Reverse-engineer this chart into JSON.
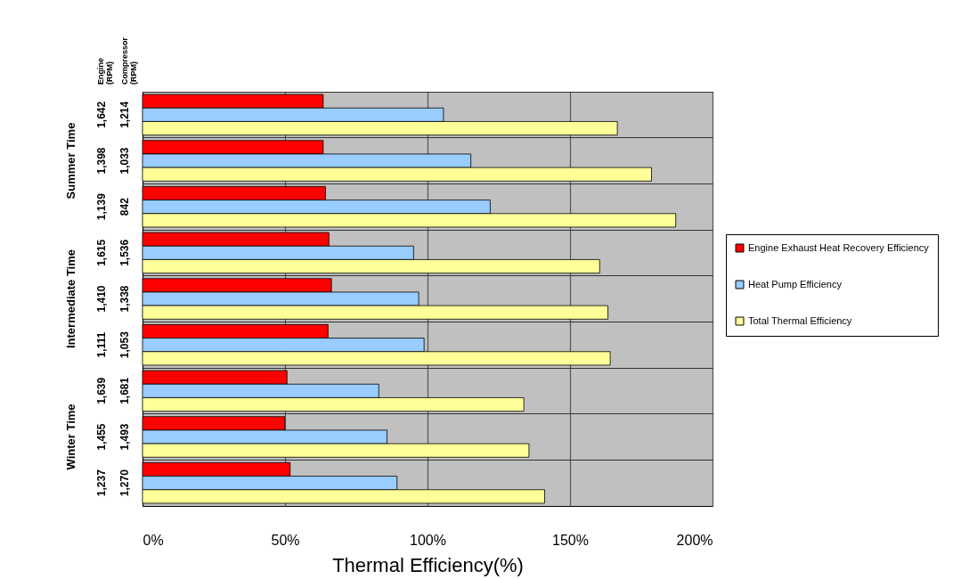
{
  "chart_data": {
    "type": "bar",
    "orientation": "horizontal",
    "xlabel": "Thermal Efficiency(%)",
    "ylabel": "Engine (RPM)",
    "y2label": "Compressor (RPM)",
    "categories": [
      "1,642",
      "1,398",
      "1,139",
      "1,615",
      "1,410",
      "1,111",
      "1,639",
      "1,455",
      "1,237"
    ],
    "series": [
      {
        "name": "Engine Exhaust Heat Recovery Efficiency",
        "color": "#ff0000",
        "values": [
          63.4,
          63.4,
          64.2,
          65.4,
          66.3,
          65.1,
          50.7,
          49.9,
          51.8
        ]
      },
      {
        "name": "Heat Pump Efficiency",
        "color": "#99ccff",
        "values": [
          105.6,
          115.2,
          122.0,
          95.1,
          96.9,
          98.8,
          82.9,
          85.8,
          89.3
        ]
      },
      {
        "name": "Total Thermal Efficiency",
        "color": "#ffff99",
        "values": [
          166.6,
          178.6,
          187.1,
          160.4,
          163.3,
          164.1,
          133.8,
          135.6,
          141.1
        ]
      }
    ],
    "xlim": [
      0,
      200
    ],
    "xticks": [
      {
        "value": 0,
        "label": "0%"
      },
      {
        "value": 50,
        "label": "50%"
      },
      {
        "value": 100,
        "label": "100%"
      },
      {
        "value": 150,
        "label": "150%"
      },
      {
        "value": 200,
        "label": "200%"
      }
    ],
    "annotations": [
      "1,214",
      "1,033",
      "842",
      "1,536",
      "1,338",
      "1,053",
      "1,681",
      "1,493",
      "1,270",
      "Summer Time",
      "Intermediate Time",
      "Winter Time"
    ],
    "grid": true,
    "legend": "right"
  }
}
